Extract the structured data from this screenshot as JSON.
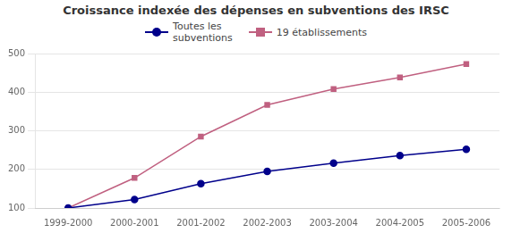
{
  "chart_data": {
    "type": "line",
    "title": "Croissance indexée des dépenses en subventions des IRSC",
    "categories": [
      "1999-2000",
      "2000-2001",
      "2001-2002",
      "2002-2003",
      "2003-2004",
      "2004-2005",
      "2005-2006"
    ],
    "series": [
      {
        "name": "Toutes les\nsubventions",
        "color": "#00008B",
        "marker": "circle",
        "values": [
          100,
          122,
          163,
          195,
          216,
          236,
          252
        ]
      },
      {
        "name": "19 établissements",
        "color": "#C06080",
        "marker": "square",
        "values": [
          100,
          178,
          285,
          367,
          408,
          438,
          473
        ]
      }
    ],
    "ylim": [
      100,
      500
    ],
    "yticks": [
      100,
      200,
      300,
      400,
      500
    ],
    "grid": "y",
    "legend": "top"
  }
}
